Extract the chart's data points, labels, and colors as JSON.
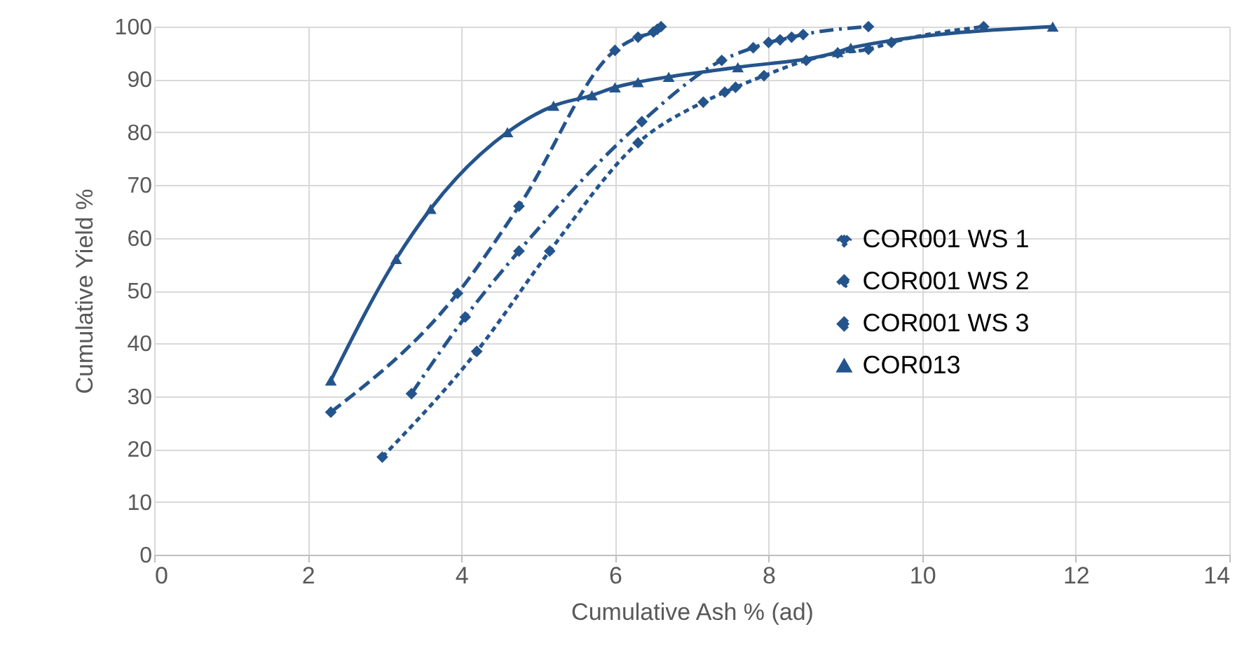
{
  "chart_data": {
    "type": "line",
    "xlabel": "Cumulative Ash % (ad)",
    "ylabel": "Cumulative Yield %",
    "xlim": [
      0,
      14
    ],
    "xticks": [
      0,
      2,
      4,
      6,
      8,
      10,
      12,
      14
    ],
    "ylim": [
      0,
      100
    ],
    "yticks": [
      0,
      10,
      20,
      30,
      40,
      50,
      60,
      70,
      80,
      90,
      100
    ],
    "grid": true,
    "legend": "right",
    "series": [
      {
        "name": "COR001 WS 1",
        "color": "#24548c",
        "marker": "diamond",
        "line_style": "dotted",
        "x": [
          2.97,
          4.2,
          5.15,
          6.3,
          7.15,
          7.43,
          7.57,
          7.94,
          8.49,
          8.9,
          9.3,
          9.6,
          10.8
        ],
        "values": [
          18.5,
          38.5,
          57.5,
          78,
          85.7,
          87.6,
          88.5,
          90.7,
          93.6,
          95,
          95.7,
          97,
          100
        ]
      },
      {
        "name": "COR001 WS 2",
        "color": "#24548c",
        "marker": "diamond",
        "line_style": "dashdot",
        "x": [
          3.35,
          4.05,
          4.75,
          6.35,
          7.39,
          7.8,
          8.0,
          8.15,
          8.3,
          8.45,
          9.3
        ],
        "values": [
          30.5,
          45,
          57.5,
          82,
          93.6,
          96,
          97,
          97.5,
          98,
          98.5,
          100
        ]
      },
      {
        "name": "COR001 WS 3",
        "color": "#24548c",
        "marker": "diamond",
        "line_style": "dashed",
        "x": [
          2.3,
          3.95,
          4.75,
          6.0,
          6.3,
          6.5,
          6.55,
          6.6
        ],
        "values": [
          27,
          49.5,
          66,
          95.5,
          98,
          99,
          99.5,
          100
        ]
      },
      {
        "name": "COR013",
        "color": "#24548c",
        "marker": "triangle",
        "line_style": "solid",
        "x": [
          2.3,
          3.15,
          3.6,
          4.6,
          5.2,
          5.7,
          6.0,
          6.3,
          6.7,
          7.6,
          8.9,
          9.07,
          11.7
        ],
        "values": [
          33,
          56,
          65.5,
          80,
          85,
          87,
          88.5,
          89.5,
          90.5,
          92.3,
          95.2,
          96,
          100
        ]
      }
    ]
  }
}
